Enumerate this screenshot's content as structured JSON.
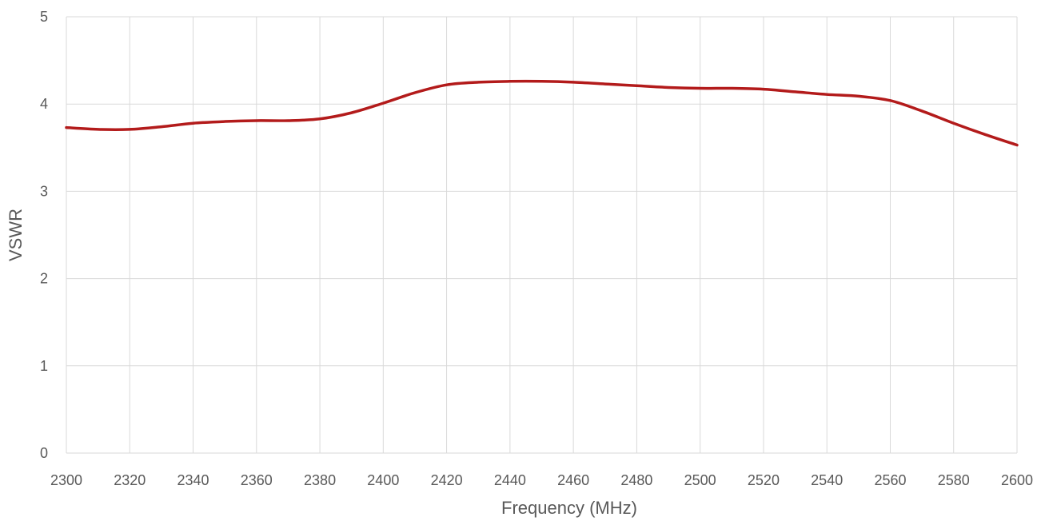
{
  "chart_data": {
    "type": "line",
    "title": "",
    "xlabel": "Frequency (MHz)",
    "ylabel": "VSWR",
    "xlim": [
      2300,
      2600
    ],
    "ylim": [
      0,
      5
    ],
    "x_ticks": [
      2300,
      2320,
      2340,
      2360,
      2380,
      2400,
      2420,
      2440,
      2460,
      2480,
      2500,
      2520,
      2540,
      2560,
      2580,
      2600
    ],
    "y_ticks": [
      0,
      1,
      2,
      3,
      4,
      5
    ],
    "grid": true,
    "legend": "none",
    "series": [
      {
        "color": "#b31b1b",
        "x": [
          2300,
          2310,
          2320,
          2330,
          2340,
          2350,
          2360,
          2370,
          2380,
          2390,
          2400,
          2410,
          2420,
          2430,
          2440,
          2450,
          2460,
          2470,
          2480,
          2490,
          2500,
          2510,
          2520,
          2530,
          2540,
          2550,
          2560,
          2570,
          2580,
          2590,
          2600
        ],
        "y": [
          3.73,
          3.71,
          3.71,
          3.74,
          3.78,
          3.8,
          3.81,
          3.81,
          3.83,
          3.9,
          4.01,
          4.13,
          4.22,
          4.25,
          4.26,
          4.26,
          4.25,
          4.23,
          4.21,
          4.19,
          4.18,
          4.18,
          4.17,
          4.14,
          4.11,
          4.09,
          4.04,
          3.92,
          3.78,
          3.65,
          3.53
        ]
      }
    ]
  }
}
